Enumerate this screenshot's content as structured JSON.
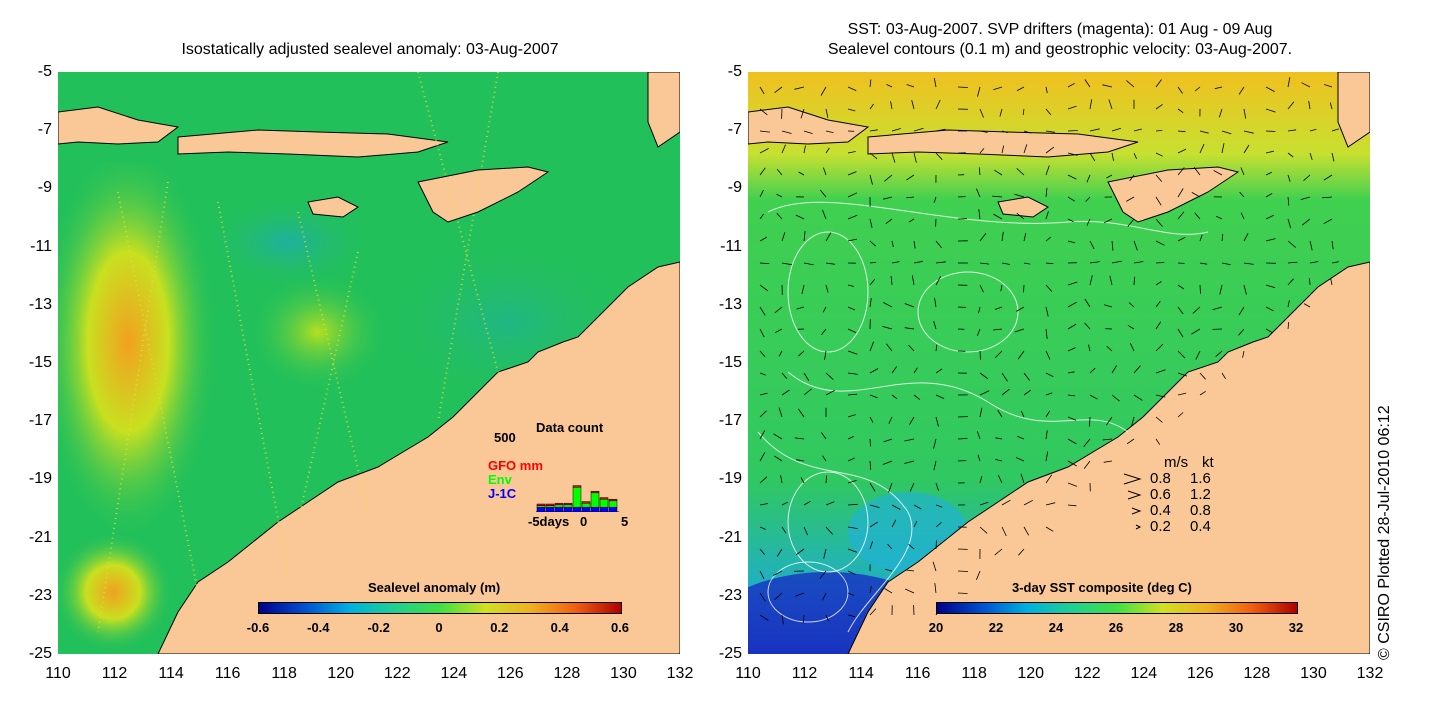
{
  "left": {
    "title": "Isostatically adjusted sealevel anomaly: 03-Aug-2007",
    "colorbar": {
      "title": "Sealevel anomaly (m)",
      "ticks": [
        "-0.6",
        "-0.4",
        "-0.2",
        "0",
        "0.2",
        "0.4",
        "0.6"
      ]
    },
    "inset": {
      "title": "Data count",
      "ymax": "500",
      "xticks": [
        "-5days",
        "0",
        "5"
      ],
      "series": [
        {
          "name": "GFO mm",
          "color": "#ff0000"
        },
        {
          "name": "Env",
          "color": "#00ff00"
        },
        {
          "name": "J-1C",
          "color": "#0000ff"
        }
      ],
      "bars": [
        {
          "gfo": 0.02,
          "env": 0.02,
          "j1": 0.06
        },
        {
          "gfo": 0.02,
          "env": 0.02,
          "j1": 0.06
        },
        {
          "gfo": 0.02,
          "env": 0.03,
          "j1": 0.06
        },
        {
          "gfo": 0.02,
          "env": 0.03,
          "j1": 0.06
        },
        {
          "gfo": 0.02,
          "env": 0.25,
          "j1": 0.06
        },
        {
          "gfo": 0.02,
          "env": 0.05,
          "j1": 0.06
        },
        {
          "gfo": 0.02,
          "env": 0.18,
          "j1": 0.06
        },
        {
          "gfo": 0.02,
          "env": 0.1,
          "j1": 0.06
        },
        {
          "gfo": 0.02,
          "env": 0.08,
          "j1": 0.06
        }
      ]
    }
  },
  "right": {
    "title_line1": "SST: 03-Aug-2007. SVP drifters (magenta): 01 Aug - 09 Aug",
    "title_line2": "Sealevel contours (0.1 m) and geostrophic velocity: 03-Aug-2007.",
    "colorbar": {
      "title": "3-day SST composite (deg C)",
      "ticks": [
        "20",
        "22",
        "24",
        "26",
        "28",
        "30",
        "32"
      ]
    },
    "speed_legend": {
      "header_ms": "m/s",
      "header_kt": "kt",
      "rows": [
        {
          "ms": "0.8",
          "kt": "1.6"
        },
        {
          "ms": "0.6",
          "kt": "1.2"
        },
        {
          "ms": "0.4",
          "kt": "0.8"
        },
        {
          "ms": "0.2",
          "kt": "0.4"
        }
      ]
    }
  },
  "axes": {
    "y_ticks": [
      "-5",
      "-7",
      "-9",
      "-11",
      "-13",
      "-15",
      "-17",
      "-19",
      "-21",
      "-23",
      "-25"
    ],
    "x_ticks": [
      "110",
      "112",
      "114",
      "116",
      "118",
      "120",
      "122",
      "124",
      "126",
      "128",
      "130",
      "132"
    ]
  },
  "credit": "© CSIRO Plotted 28-Jul-2010 06:12",
  "colors": {
    "land": "#fac896",
    "sea_left": "#22c05a",
    "sea_right": "#33cc55",
    "sst_warm": "#f0c020",
    "sst_cold": "#1020c0"
  }
}
